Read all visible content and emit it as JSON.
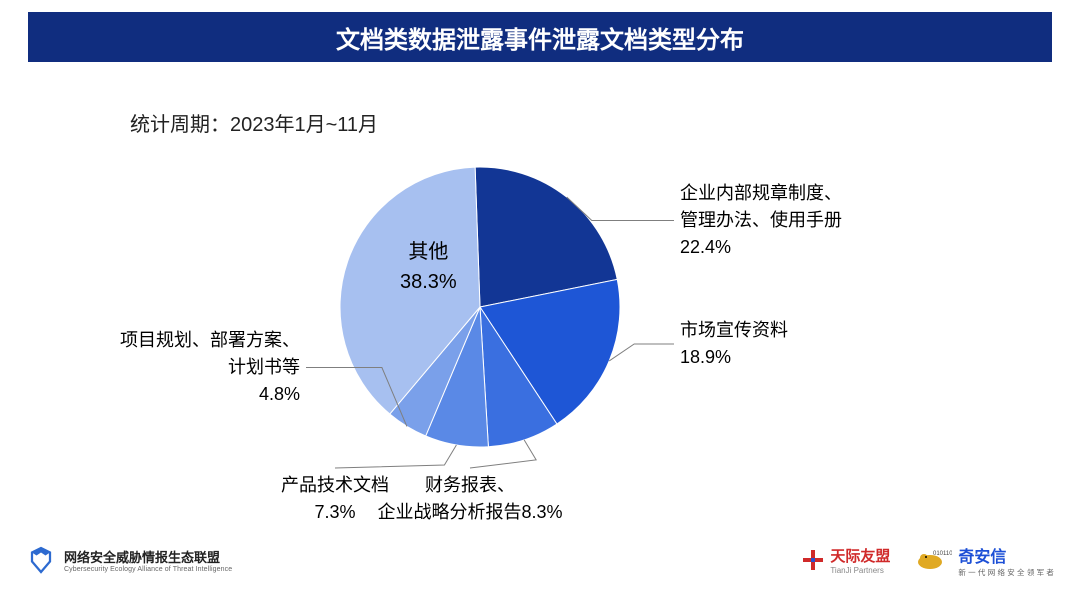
{
  "title": {
    "text": "文档类数据泄露事件泄露文档类型分布",
    "bg_color": "#102d7f",
    "text_color": "#ffffff",
    "font_size": 24
  },
  "subtitle": "统计周期：2023年1月~11月",
  "chart": {
    "type": "pie",
    "start_angle_deg": -92,
    "direction": "clockwise",
    "background_color": "#ffffff",
    "leader_color": "#7f7f7f",
    "label_font_size": 18,
    "inpie_font_size": 20,
    "slices": [
      {
        "name": "企业内部规章制度、管理办法、使用手册",
        "value": 22.4,
        "color": "#123695",
        "label_lines": [
          "企业内部规章制度、",
          "管理办法、使用手册",
          "22.4%"
        ]
      },
      {
        "name": "市场宣传资料",
        "value": 18.9,
        "color": "#1e56d6",
        "label_lines": [
          "市场宣传资料",
          "18.9%"
        ]
      },
      {
        "name": "财务报表、企业战略分析报告",
        "value": 8.3,
        "color": "#3a6fe0",
        "label_lines": [
          "财务报表、",
          "企业战略分析报告8.3%"
        ]
      },
      {
        "name": "产品技术文档",
        "value": 7.3,
        "color": "#5a89e6",
        "label_lines": [
          "产品技术文档",
          "7.3%"
        ]
      },
      {
        "name": "项目规划、部署方案、计划书等",
        "value": 4.8,
        "color": "#7aa0ea",
        "label_lines": [
          "项目规划、部署方案、",
          "计划书等",
          "4.8%"
        ]
      },
      {
        "name": "其他",
        "value": 38.3,
        "color": "#a7c0f0",
        "label_lines": [
          "其他",
          "38.3%"
        ],
        "label_inside": true
      }
    ]
  },
  "footer": {
    "org1": {
      "cn": "网络安全威胁情报生态联盟",
      "en": "Cybersecurity Ecology Alliance of Threat Intelligence",
      "icon_color": "#2d6ad0"
    },
    "org2": {
      "cn": "天际友盟",
      "en": "TianJi Partners",
      "icon_color": "#d02a2a"
    },
    "org3": {
      "cn": "奇安信",
      "sub": "新 一 代 网 络 安 全 领 军 者",
      "icon_color": "#e0a923"
    }
  }
}
